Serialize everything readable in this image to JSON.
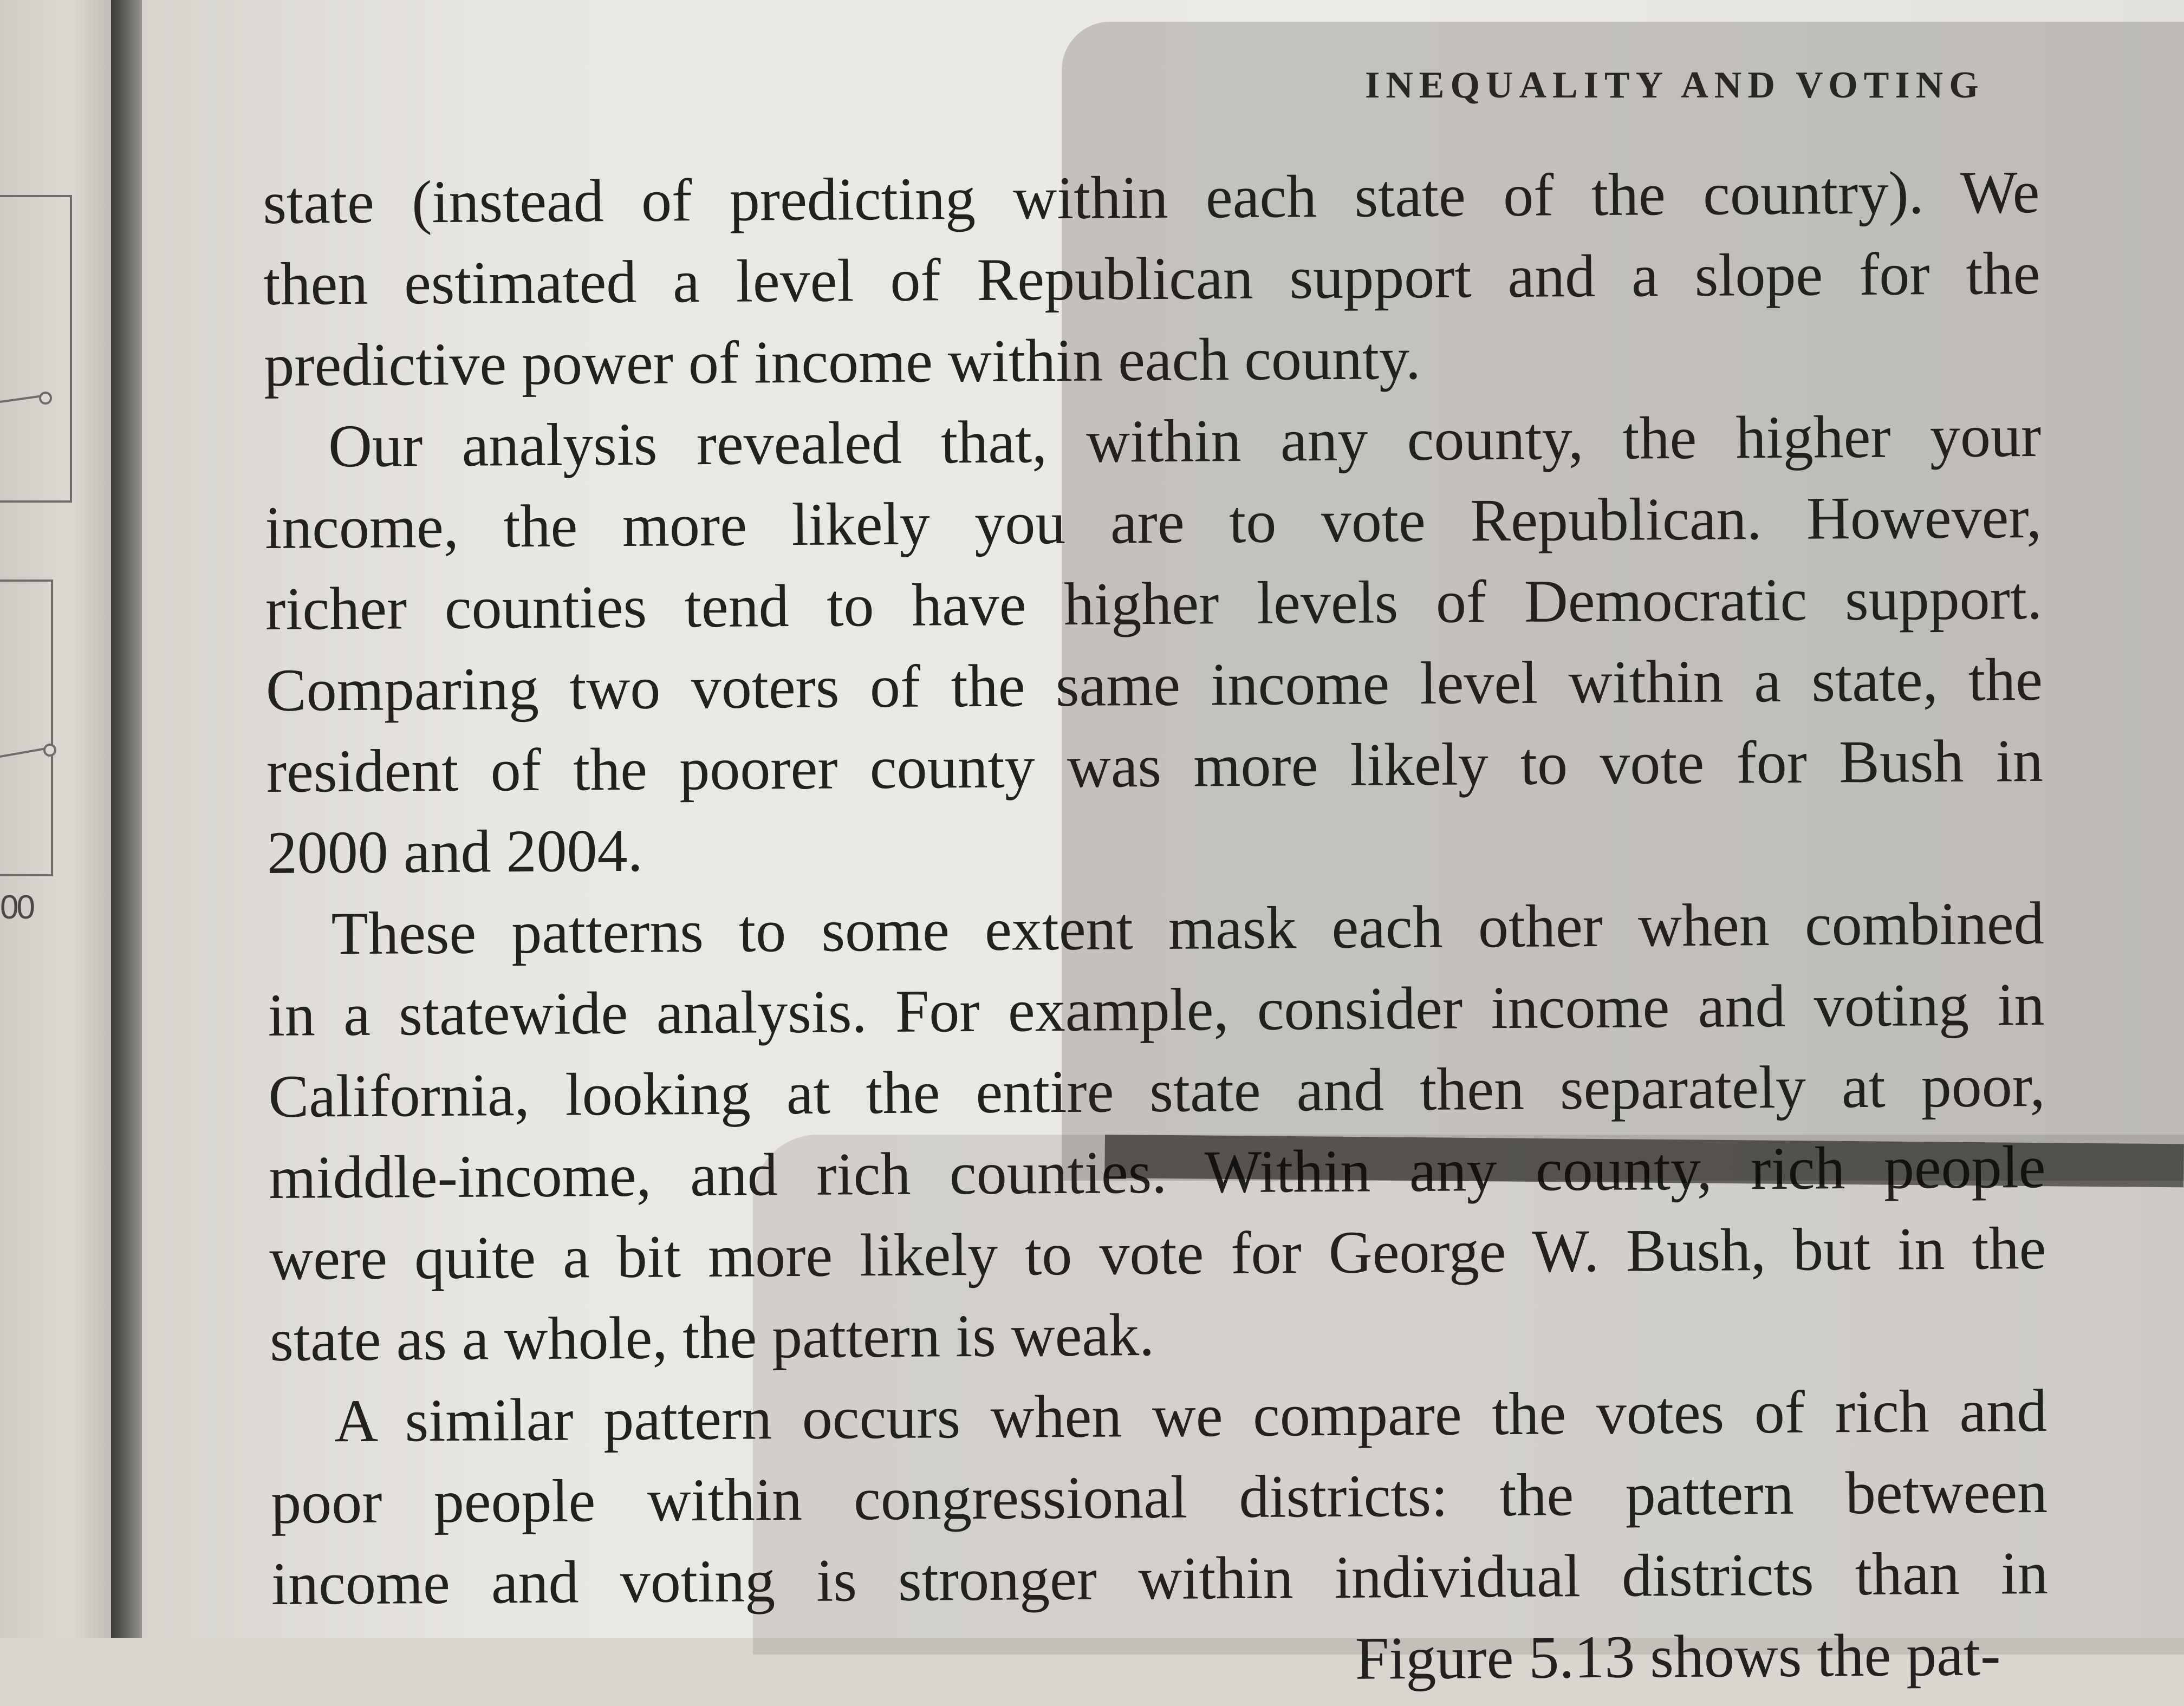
{
  "page": {
    "running_head": "INEQUALITY AND VOTING",
    "left_page_fragment_label": "00"
  },
  "text": {
    "lines": [
      "state (instead of predicting within each state of the country). We",
      "then estimated a level of Republican support and a slope for the",
      "predictive power of income within each county.",
      "Our analysis revealed that, within any county, the higher your",
      "income, the more likely you are to vote Republican. However,",
      "richer counties tend to have higher levels of Democratic support.",
      "Comparing two voters of the same income level within a state, the",
      "resident of the poorer county was more likely to vote for Bush in",
      "2000 and 2004.",
      "These patterns to some extent mask each other when combined",
      "in a statewide analysis. For example, consider income and voting in",
      "California, looking at the entire state and then separately at poor,",
      "middle-income, and rich counties. Within any county, rich people",
      "were quite a bit more likely to vote for George W. Bush, but in the",
      "state as a whole, the pattern is weak.",
      "A similar pattern occurs when we compare the votes of rich and",
      "poor people within congressional districts: the pattern between",
      "income and voting is stronger within individual districts than in"
    ],
    "cut_off_line": "Figure 5.13 shows the pat-"
  }
}
